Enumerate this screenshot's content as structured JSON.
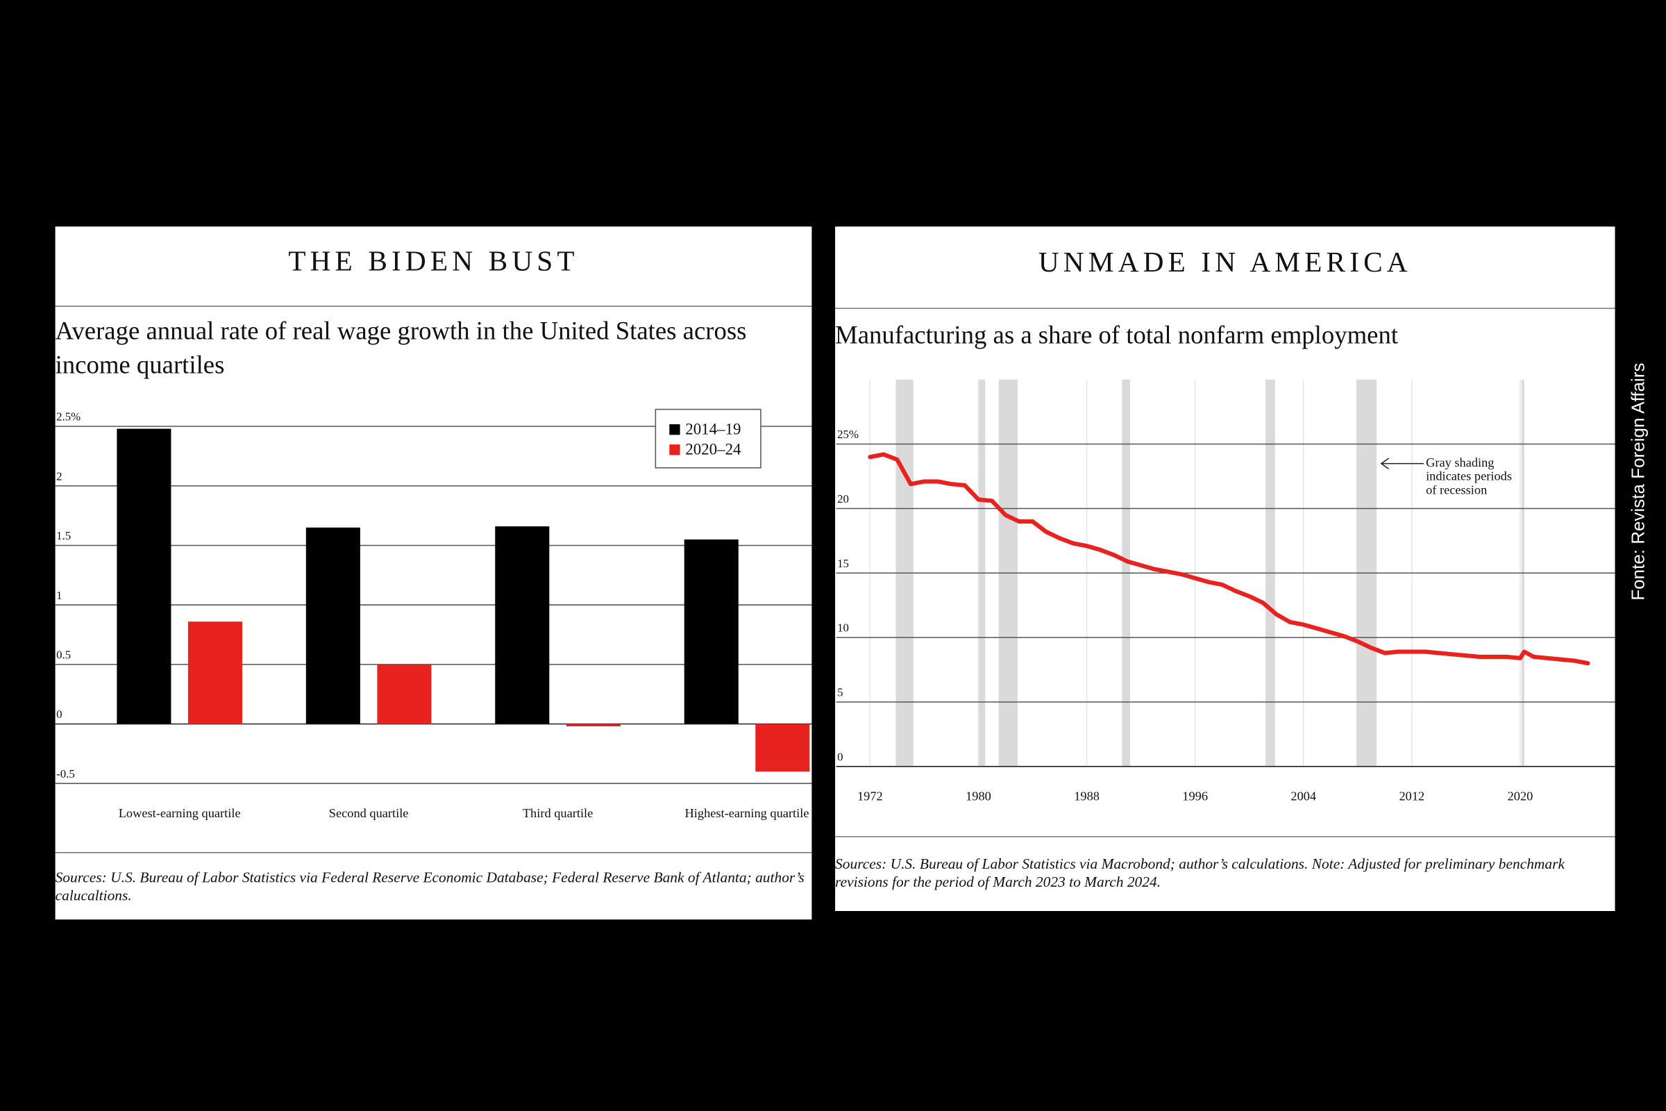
{
  "chart_data": [
    {
      "type": "bar",
      "title": "THE BIDEN BUST",
      "subtitle": "Average annual rate of real wage growth in the United States across income quartiles",
      "categories": [
        "Lowest-earning quartile",
        "Second quartile",
        "Third quartile",
        "Highest-earning quartile"
      ],
      "series": [
        {
          "name": "2014–19",
          "color": "#000000",
          "values": [
            2.48,
            1.65,
            1.66,
            1.55
          ]
        },
        {
          "name": "2020–24",
          "color": "#e8231f",
          "values": [
            0.86,
            0.5,
            -0.02,
            -0.4
          ]
        }
      ],
      "ylim": [
        -0.5,
        2.5
      ],
      "yticks": [
        {
          "value": 2.5,
          "label": "2.5%"
        },
        2,
        1.5,
        1,
        0.5,
        0,
        -0.5
      ],
      "grid": true,
      "legend": "top-right",
      "source": "Sources: U.S. Bureau of Labor Statistics via Federal Reserve Economic Database; Federal Reserve Bank of Atlanta; author’s calucaltions."
    },
    {
      "type": "line",
      "title": "UNMADE IN AMERICA",
      "subtitle": "Manufacturing as a share of total nonfarm employment",
      "x": [
        1972,
        1973,
        1974,
        1975,
        1976,
        1977,
        1978,
        1979,
        1980,
        1981,
        1982,
        1983,
        1984,
        1985,
        1986,
        1987,
        1988,
        1989,
        1990,
        1991,
        1992,
        1993,
        1994,
        1995,
        1996,
        1997,
        1998,
        1999,
        2000,
        2001,
        2002,
        2003,
        2004,
        2005,
        2006,
        2007,
        2008,
        2009,
        2010,
        2011,
        2012,
        2013,
        2014,
        2015,
        2016,
        2017,
        2018,
        2019,
        2020,
        2020.3,
        2021,
        2022,
        2023,
        2024,
        2025
      ],
      "values": [
        24.0,
        24.2,
        23.8,
        21.9,
        22.1,
        22.1,
        21.9,
        21.8,
        20.7,
        20.6,
        19.5,
        19.0,
        19.0,
        18.2,
        17.7,
        17.3,
        17.1,
        16.8,
        16.4,
        15.9,
        15.6,
        15.3,
        15.1,
        14.9,
        14.6,
        14.3,
        14.1,
        13.6,
        13.2,
        12.7,
        11.8,
        11.2,
        11.0,
        10.7,
        10.4,
        10.1,
        9.7,
        9.2,
        8.8,
        8.9,
        8.9,
        8.9,
        8.8,
        8.7,
        8.6,
        8.5,
        8.5,
        8.5,
        8.4,
        8.9,
        8.5,
        8.4,
        8.3,
        8.2,
        8.0
      ],
      "color": "#e8231f",
      "recessions": [
        [
          1973.9,
          1975.2
        ],
        [
          1980.0,
          1980.5
        ],
        [
          1981.5,
          1982.9
        ],
        [
          1990.6,
          1991.2
        ],
        [
          2001.2,
          2001.9
        ],
        [
          2007.9,
          2009.4
        ],
        [
          2020.1,
          2020.3
        ]
      ],
      "xlim": [
        1969.5,
        2027
      ],
      "xticks": [
        1972,
        1980,
        1988,
        1996,
        2004,
        2012,
        2020
      ],
      "ylim": [
        0,
        30
      ],
      "yticks": [
        {
          "value": 25,
          "label": "25%"
        },
        20,
        15,
        10,
        5,
        0
      ],
      "grid": true,
      "annotation": [
        "Gray shading",
        "indicates periods",
        "of recession"
      ],
      "source": "Sources: U.S. Bureau of Labor Statistics via Macrobond; author’s calculations. Note: Adjusted for preliminary benchmark revisions for the period of March 2023 to March 2024."
    }
  ],
  "credit": "Fonte: Revista Foreign Affairs"
}
